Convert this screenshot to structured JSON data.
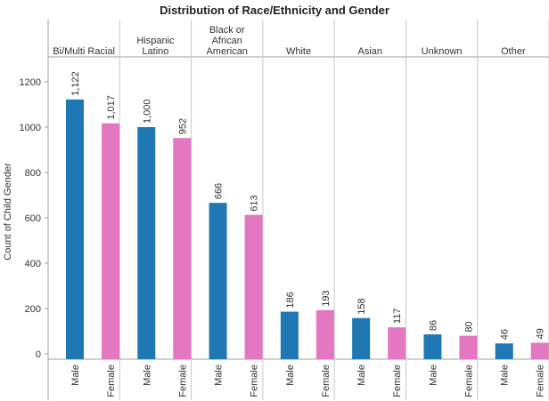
{
  "chart_data": {
    "type": "bar",
    "title": "Distribution of Race/Ethnicity and Gender",
    "ylabel": "Count of Child Gender",
    "ylim": [
      0,
      1400
    ],
    "yticks": [
      0,
      200,
      400,
      600,
      800,
      1000,
      1200
    ],
    "grid": false,
    "categories": [
      "Male",
      "Female"
    ],
    "colors": {
      "Male": "#1f77b4",
      "Female": "#e377c2"
    },
    "panels": [
      {
        "label": "Bi/Multi Racial",
        "values": [
          1122,
          1017
        ],
        "value_labels": [
          "1,122",
          "1,017"
        ]
      },
      {
        "label": "Hispanic\nLatino",
        "values": [
          1000,
          952
        ],
        "value_labels": [
          "1,000",
          "952"
        ]
      },
      {
        "label": "Black or\nAfrican\nAmerican",
        "values": [
          666,
          613
        ],
        "value_labels": [
          "666",
          "613"
        ]
      },
      {
        "label": "White",
        "values": [
          186,
          193
        ],
        "value_labels": [
          "186",
          "193"
        ]
      },
      {
        "label": "Asian",
        "values": [
          158,
          117
        ],
        "value_labels": [
          "158",
          "117"
        ]
      },
      {
        "label": "Unknown",
        "values": [
          86,
          80
        ],
        "value_labels": [
          "86",
          "80"
        ]
      },
      {
        "label": "Other",
        "values": [
          46,
          49
        ],
        "value_labels": [
          "46",
          "49"
        ]
      }
    ]
  }
}
